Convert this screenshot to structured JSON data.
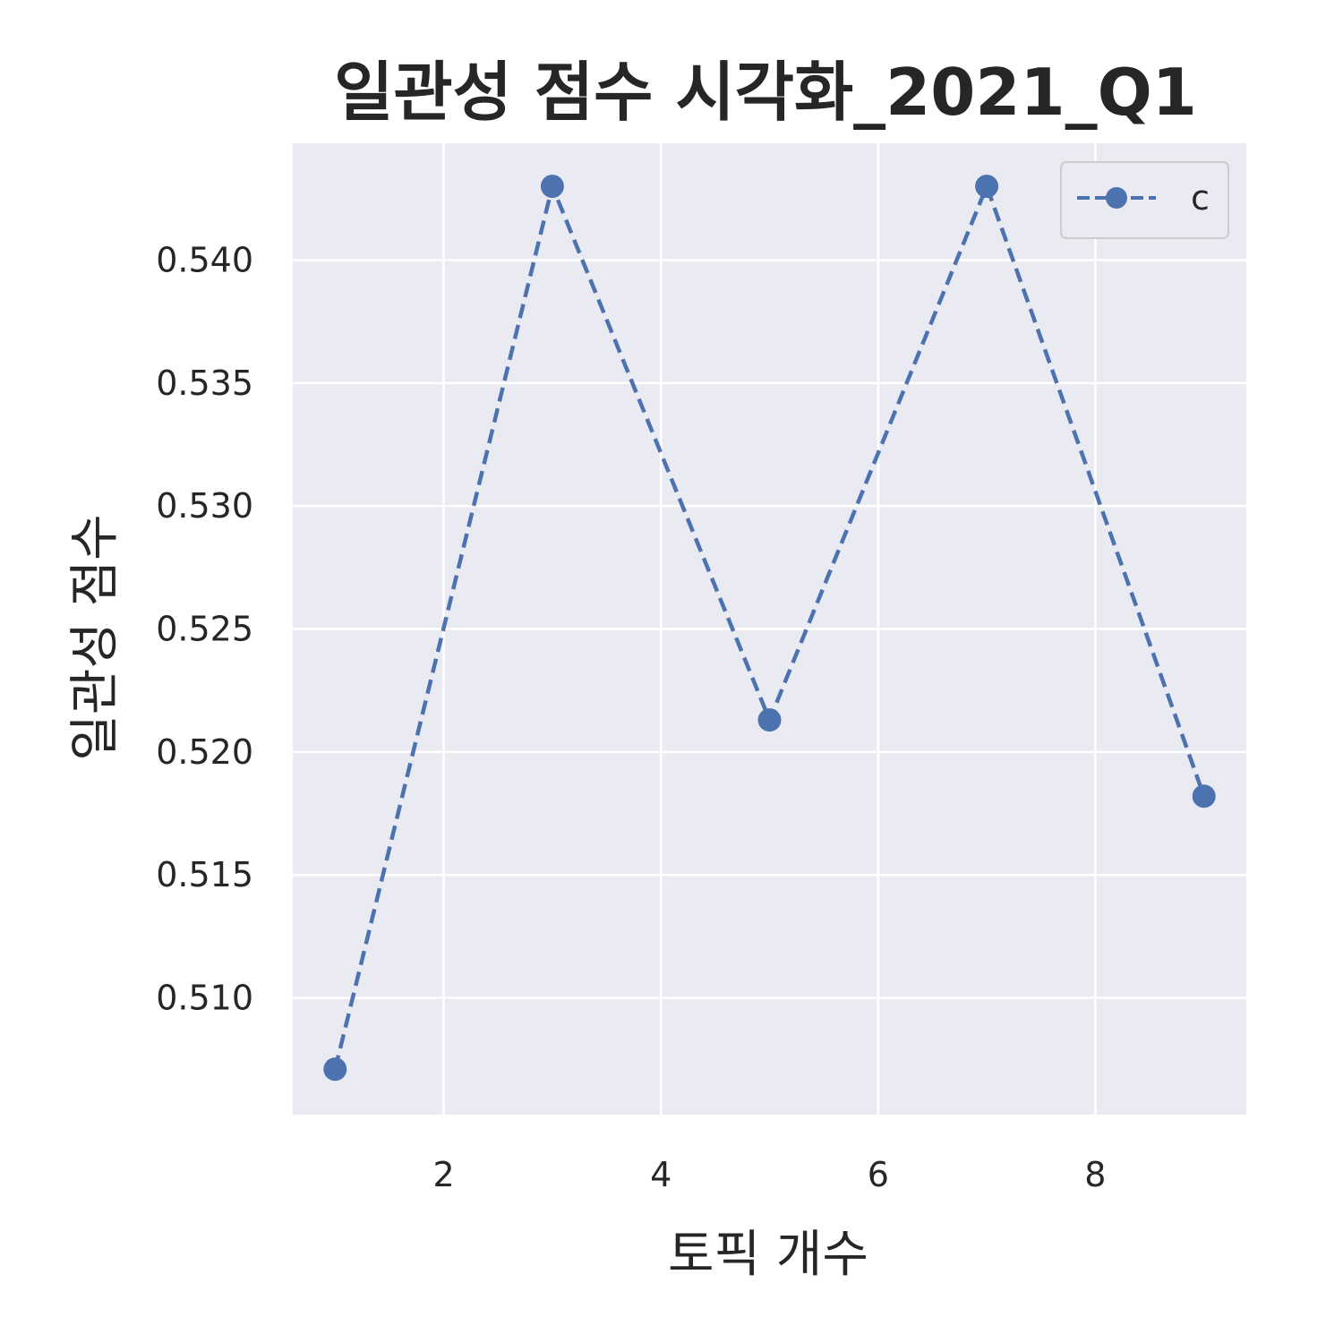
{
  "chart_data": {
    "type": "line",
    "title": "일관성 점수 시각화_2021_Q1",
    "xlabel": "토픽 개수",
    "ylabel": "일관성 점수",
    "xlim": [
      0.61,
      9.39
    ],
    "ylim": [
      0.50525,
      0.54475
    ],
    "x_ticks": [
      2,
      4,
      6,
      8
    ],
    "y_ticks": [
      0.51,
      0.515,
      0.52,
      0.525,
      0.53,
      0.535,
      0.54
    ],
    "x_tick_labels": [
      "2",
      "4",
      "6",
      "8"
    ],
    "y_tick_labels": [
      "0.510",
      "0.515",
      "0.520",
      "0.525",
      "0.530",
      "0.535",
      "0.540"
    ],
    "grid": true,
    "legend_position": "top-right",
    "series": [
      {
        "name": "c",
        "x": [
          1,
          3,
          5,
          7,
          9
        ],
        "values": [
          0.5071,
          0.543,
          0.5213,
          0.543,
          0.5182
        ],
        "color": "#4c72b0",
        "line_style": "dashed",
        "marker": "circle"
      }
    ]
  },
  "style": {
    "plot_background": "#eaeaf2",
    "grid_color": "#ffffff",
    "text_color": "#262626",
    "legend_border": "#cccccc"
  }
}
